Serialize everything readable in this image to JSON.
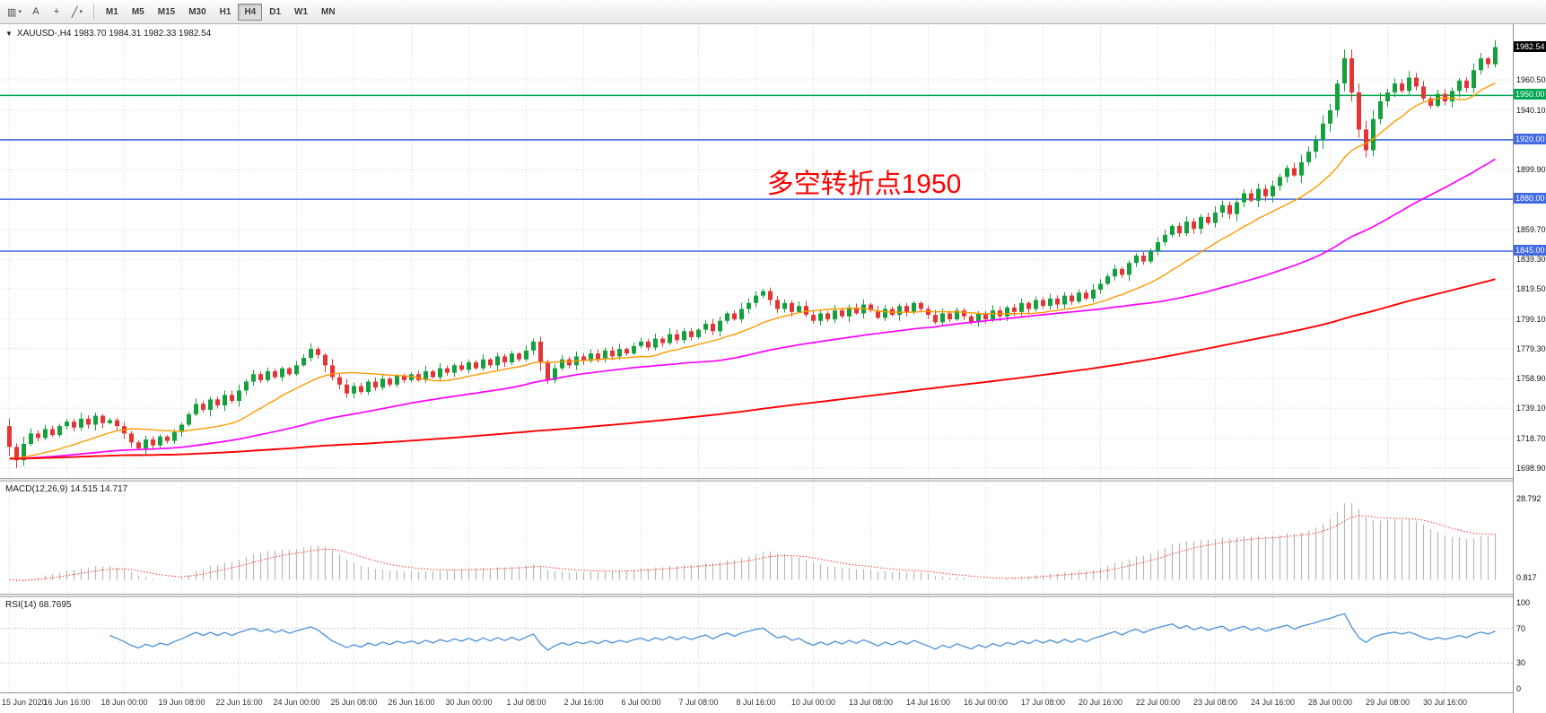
{
  "toolbar": {
    "tools": [
      {
        "name": "chart-type-menu-button",
        "glyph": "▥",
        "dropdown": true
      },
      {
        "name": "text-annotation-button",
        "glyph": "A",
        "dropdown": false
      },
      {
        "name": "crosshair-button",
        "glyph": "+",
        "dropdown": false
      },
      {
        "name": "draw-tools-menu-button",
        "glyph": "╱",
        "dropdown": true
      }
    ],
    "timeframes": [
      {
        "label": "M1",
        "active": false
      },
      {
        "label": "M5",
        "active": false
      },
      {
        "label": "M15",
        "active": false
      },
      {
        "label": "M30",
        "active": false
      },
      {
        "label": "H1",
        "active": false
      },
      {
        "label": "H4",
        "active": true
      },
      {
        "label": "D1",
        "active": false
      },
      {
        "label": "W1",
        "active": false
      },
      {
        "label": "MN",
        "active": false
      }
    ]
  },
  "chart": {
    "symbol_header": "XAUUSD-,H4  1983.70 1984.31 1982.33 1982.54",
    "annotation": {
      "text": "多空转折点1950",
      "color": "#ff0000"
    },
    "current_price": "1982.54",
    "scale_labels": [
      "1960.50",
      "1940.10",
      "1899.90",
      "1859.70",
      "1839.30",
      "1819.50",
      "1799.10",
      "1779.30",
      "1758.90",
      "1739.10",
      "1718.70",
      "1698.90"
    ],
    "hlines": [
      {
        "label": "1950.00",
        "price": 1950.0,
        "color": "#00a651"
      },
      {
        "label": "1920.00",
        "price": 1920.0,
        "color": "#4169e1"
      },
      {
        "label": "1880.00",
        "price": 1880.0,
        "color": "#4169e1"
      },
      {
        "label": "1845.00",
        "price": 1845.0,
        "color": "#4169e1"
      }
    ],
    "price_range": {
      "max": 1998,
      "min": 1692
    },
    "up_color": "#14a03c",
    "down_color": "#e43434",
    "ma_colors": {
      "fast": "#ff9900",
      "mid": "#ff00ff",
      "slow": "#ff0000"
    },
    "candles": {
      "open_first": 1727,
      "closes": [
        1713,
        1704,
        1715,
        1722,
        1719,
        1725,
        1721,
        1727,
        1730,
        1726,
        1732,
        1728,
        1734,
        1729,
        1731,
        1727,
        1722,
        1716,
        1712,
        1718,
        1714,
        1720,
        1717,
        1723,
        1728,
        1735,
        1742,
        1738,
        1745,
        1741,
        1748,
        1744,
        1751,
        1757,
        1762,
        1758,
        1764,
        1760,
        1766,
        1762,
        1768,
        1773,
        1779,
        1775,
        1768,
        1760,
        1755,
        1749,
        1754,
        1750,
        1757,
        1753,
        1759,
        1755,
        1761,
        1758,
        1762,
        1758,
        1764,
        1760,
        1766,
        1763,
        1768,
        1765,
        1770,
        1766,
        1772,
        1768,
        1774,
        1770,
        1776,
        1772,
        1778,
        1784,
        1770,
        1758,
        1766,
        1772,
        1768,
        1774,
        1771,
        1776,
        1772,
        1778,
        1774,
        1779,
        1776,
        1781,
        1784,
        1780,
        1786,
        1783,
        1789,
        1785,
        1791,
        1787,
        1792,
        1796,
        1791,
        1798,
        1803,
        1799,
        1806,
        1810,
        1815,
        1818,
        1812,
        1806,
        1810,
        1804,
        1808,
        1802,
        1798,
        1803,
        1799,
        1805,
        1801,
        1807,
        1803,
        1809,
        1805,
        1800,
        1806,
        1802,
        1808,
        1804,
        1810,
        1806,
        1802,
        1797,
        1803,
        1799,
        1805,
        1801,
        1797,
        1803,
        1799,
        1805,
        1801,
        1807,
        1804,
        1810,
        1806,
        1812,
        1808,
        1813,
        1809,
        1815,
        1811,
        1817,
        1813,
        1819,
        1823,
        1828,
        1833,
        1829,
        1837,
        1842,
        1838,
        1845,
        1851,
        1856,
        1862,
        1857,
        1865,
        1860,
        1868,
        1864,
        1871,
        1876,
        1870,
        1878,
        1884,
        1879,
        1887,
        1882,
        1889,
        1895,
        1901,
        1896,
        1905,
        1912,
        1920,
        1931,
        1940,
        1958,
        1975,
        1952,
        1927,
        1913,
        1934,
        1946,
        1952,
        1958,
        1953,
        1962,
        1956,
        1948,
        1943,
        1951,
        1946,
        1953,
        1960,
        1955,
        1967,
        1975,
        1971,
        1982.54
      ]
    }
  },
  "macd": {
    "label": "MACD(12,26,9) 14.515 14.717",
    "scale_top": "28.792",
    "scale_bottom": "0.817",
    "histogram_color": "#b8b8b8",
    "signal_color": "#ff3333"
  },
  "rsi": {
    "label": "RSI(14) 68.7695",
    "levels": [
      "100",
      "70",
      "30",
      "0"
    ],
    "line_color": "#4a90d9"
  },
  "time_axis": [
    "15 Jun 2020",
    "16 Jun 16:00",
    "18 Jun 00:00",
    "19 Jun 08:00",
    "22 Jun 16:00",
    "24 Jun 00:00",
    "25 Jun 08:00",
    "26 Jun 16:00",
    "30 Jun 00:00",
    "1 Jul 08:00",
    "2 Jul 16:00",
    "6 Jul 00:00",
    "7 Jul 08:00",
    "8 Jul 16:00",
    "10 Jul 00:00",
    "13 Jul 08:00",
    "14 Jul 16:00",
    "16 Jul 00:00",
    "17 Jul 08:00",
    "20 Jul 16:00",
    "22 Jul 00:00",
    "23 Jul 08:00",
    "24 Jul 16:00",
    "28 Jul 00:00",
    "29 Jul 08:00",
    "30 Jul 16:00"
  ]
}
